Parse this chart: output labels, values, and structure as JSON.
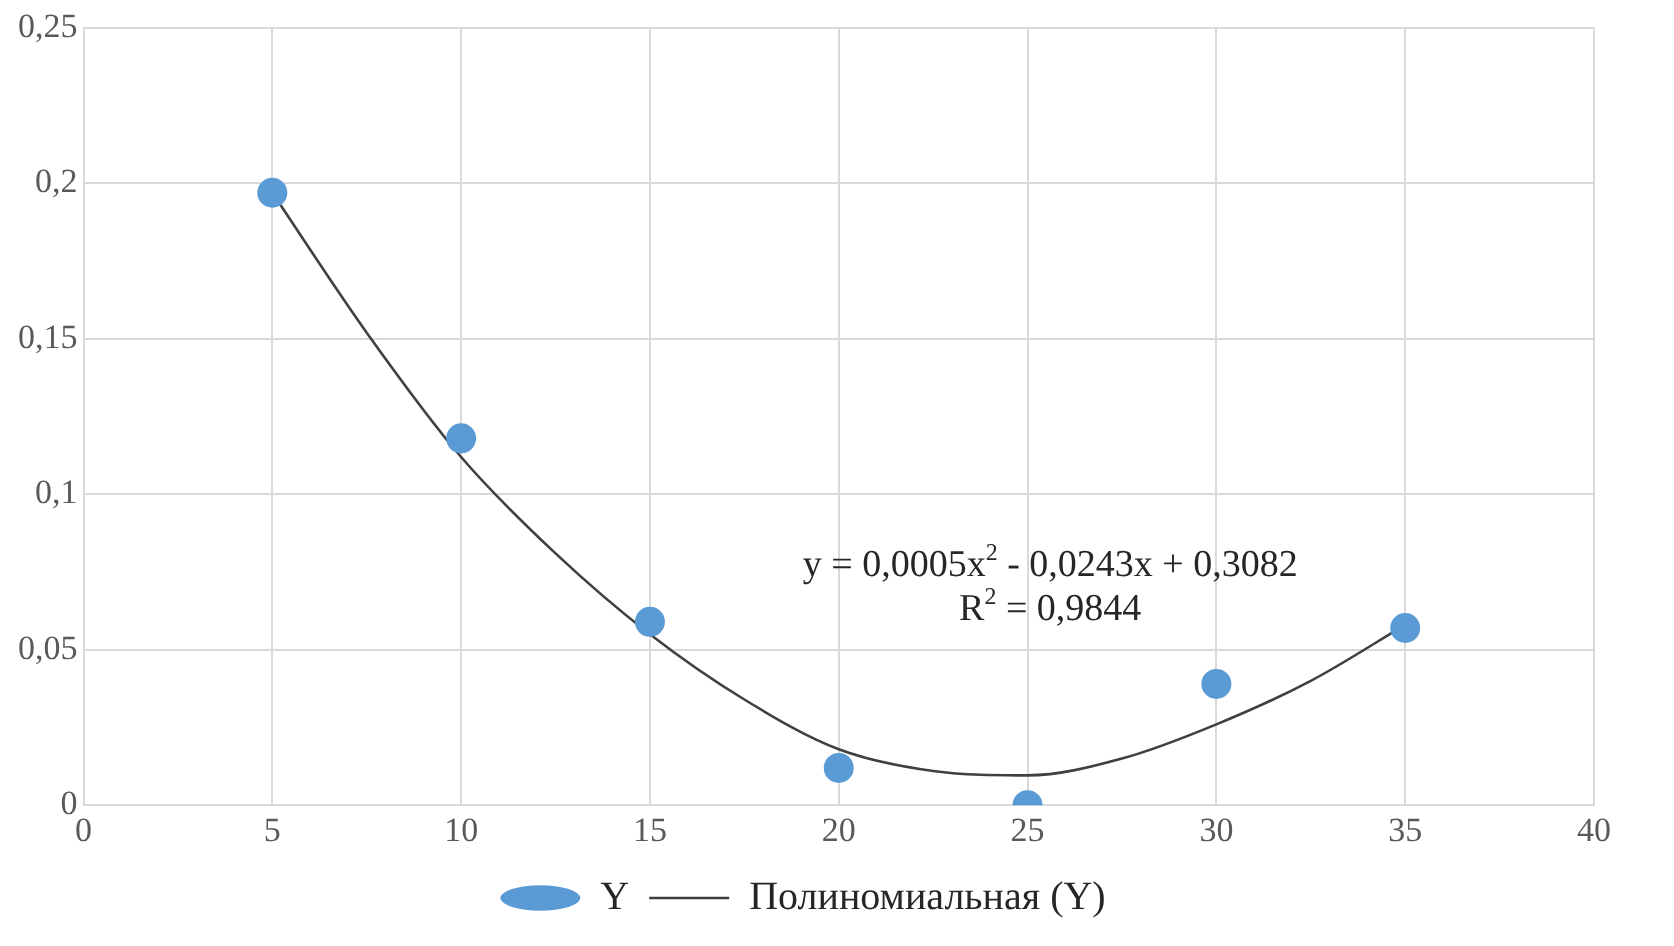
{
  "chart_data": {
    "type": "scatter",
    "series": [
      {
        "name": "Y",
        "type": "scatter",
        "color": "#5b9bd5",
        "marker": "circle",
        "x": [
          5,
          10,
          15,
          20,
          25,
          30,
          35
        ],
        "values": [
          0.197,
          0.118,
          0.059,
          0.012,
          0.0,
          0.039,
          0.057
        ]
      },
      {
        "name": "Полиномиальная (Y)",
        "type": "line",
        "color": "#404040",
        "marker": "none",
        "line_style": "solid",
        "x": [
          5,
          7.5,
          10,
          12.5,
          15,
          17.5,
          20,
          22.5,
          25,
          27.5,
          30,
          32.5,
          35
        ],
        "values": [
          0.197,
          0.152,
          0.112,
          0.081,
          0.055,
          0.034,
          0.018,
          0.011,
          0.0096,
          0.015,
          0.026,
          0.04,
          0.058
        ]
      }
    ],
    "xlim": [
      0,
      40
    ],
    "xticks": [
      0,
      5,
      10,
      15,
      20,
      25,
      30,
      35,
      40
    ],
    "ylim": [
      0,
      0.25
    ],
    "yticks": [
      {
        "value": 0,
        "label": "0"
      },
      {
        "value": 0.05,
        "label": "0,05"
      },
      {
        "value": 0.1,
        "label": "0,1"
      },
      {
        "value": 0.15,
        "label": "0,15"
      },
      {
        "value": 0.2,
        "label": "0,2"
      },
      {
        "value": 0.25,
        "label": "0,25"
      }
    ],
    "annotations": [
      "y = 0,0005x$^{2}$ - 0,0243x + 0,3082",
      "R$^{2}$ = 0,9844"
    ],
    "grid": true,
    "legend": "bottom"
  }
}
